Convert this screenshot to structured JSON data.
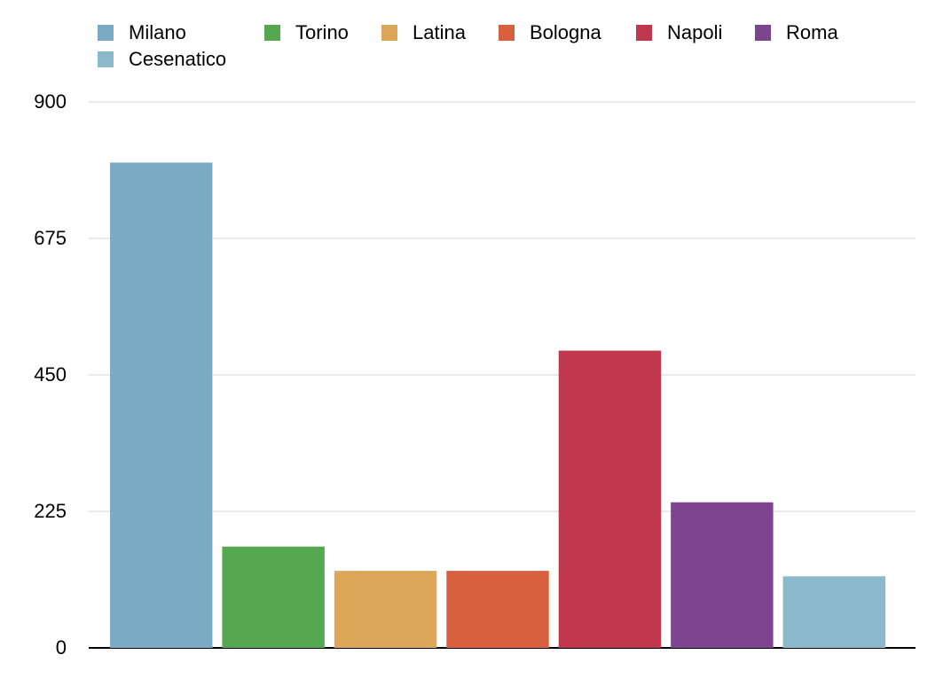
{
  "chart_data": {
    "type": "bar",
    "categories": [
      null
    ],
    "series": [
      {
        "name": "Milano",
        "color": "#7aaac4",
        "values": [
          800
        ]
      },
      {
        "name": "Torino",
        "color": "#55a84f",
        "values": [
          167
        ]
      },
      {
        "name": "Latina",
        "color": "#dda75a",
        "values": [
          127
        ]
      },
      {
        "name": "Bologna",
        "color": "#d9603f",
        "values": [
          127
        ]
      },
      {
        "name": "Napoli",
        "color": "#c0384d",
        "values": [
          490
        ]
      },
      {
        "name": "Roma",
        "color": "#7d4590",
        "values": [
          240
        ]
      },
      {
        "name": "Cesenatico",
        "color": "#8db9cc",
        "values": [
          118
        ]
      }
    ],
    "ylim": [
      0,
      900
    ],
    "yticks": [
      0,
      225,
      450,
      675,
      900
    ],
    "grid": true,
    "legend": "top"
  }
}
